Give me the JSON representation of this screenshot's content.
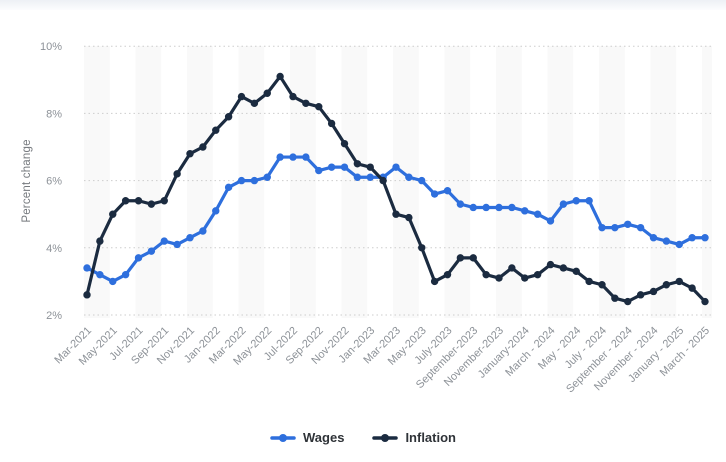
{
  "page": {
    "background": "#ffffff"
  },
  "chart_data": {
    "type": "line",
    "title": "",
    "ylabel": "Percent change",
    "ylim": [
      2,
      10
    ],
    "y_ticks": [
      2,
      4,
      6,
      8,
      10
    ],
    "y_tick_labels": [
      "2%",
      "4%",
      "6%",
      "8%",
      "10%"
    ],
    "points_per_tick": 2,
    "x_tick_labels": [
      "Mar-2021",
      "May-2021",
      "Jul-2021",
      "Sep-2021",
      "Nov-2021",
      "Jan-2022",
      "Mar-2022",
      "May-2022",
      "Jul-2022",
      "Sep-2022",
      "Nov-2022",
      "Jan-2023",
      "Mar-2023",
      "May-2023",
      "July-2023",
      "September-2023",
      "November-2023",
      "January-2024",
      "March - 2024",
      "May - 2024",
      "July - 2024",
      "September - 2024",
      "November - 2024",
      "January - 2025",
      "March - 2025"
    ],
    "grid": "horizontal-dotted",
    "plot_background": "alternating vertical stripes, one band per two months",
    "legend_position": "bottom-center",
    "colors": {
      "stripe": "#f9f9f9",
      "gridline": "#cdcdcd",
      "tick_text": "#8d9298",
      "axis_title_text": "#75797e",
      "legend_text": "#2f3338"
    },
    "series": [
      {
        "name": "Wages",
        "color": "#2e6fdd",
        "values": [
          3.4,
          3.2,
          3.0,
          3.2,
          3.7,
          3.9,
          4.2,
          4.1,
          4.3,
          4.5,
          5.1,
          5.8,
          6.0,
          6.0,
          6.1,
          6.7,
          6.7,
          6.7,
          6.3,
          6.4,
          6.4,
          6.1,
          6.1,
          6.1,
          6.4,
          6.1,
          6.0,
          5.6,
          5.7,
          5.3,
          5.2,
          5.2,
          5.2,
          5.2,
          5.1,
          5.0,
          4.8,
          5.3,
          5.4,
          5.4,
          4.6,
          4.6,
          4.7,
          4.6,
          4.3,
          4.2,
          4.1,
          4.3,
          4.3
        ]
      },
      {
        "name": "Inflation",
        "color": "#1b2b40",
        "values": [
          2.6,
          4.2,
          5.0,
          5.4,
          5.4,
          5.3,
          5.4,
          6.2,
          6.8,
          7.0,
          7.5,
          7.9,
          8.5,
          8.3,
          8.6,
          9.1,
          8.5,
          8.3,
          8.2,
          7.7,
          7.1,
          6.5,
          6.4,
          6.0,
          5.0,
          4.9,
          4.0,
          3.0,
          3.2,
          3.7,
          3.7,
          3.2,
          3.1,
          3.4,
          3.1,
          3.2,
          3.5,
          3.4,
          3.3,
          3.0,
          2.9,
          2.5,
          2.4,
          2.6,
          2.7,
          2.9,
          3.0,
          2.8,
          2.4
        ]
      }
    ]
  }
}
